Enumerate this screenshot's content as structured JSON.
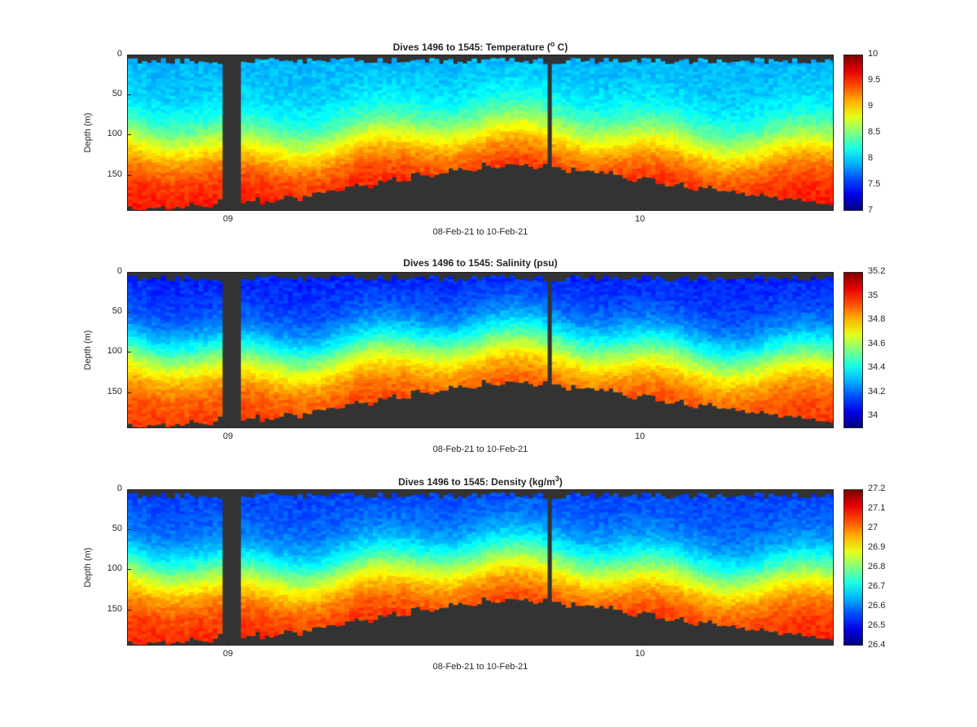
{
  "chart_data": [
    {
      "type": "heatmap",
      "title": "Dives 1496 to 1545: Temperature (",
      "title_sup": "o",
      "title_suffix": " C)",
      "xlabel": "08-Feb-21 to 10-Feb-21",
      "ylabel": "Depth (m)",
      "x_ticks": [
        "09",
        "10"
      ],
      "y_ticks": [
        "0",
        "50",
        "100",
        "150"
      ],
      "ylim": [
        0,
        195
      ],
      "colorbar": {
        "min": 7,
        "max": 10,
        "ticks": [
          "10",
          "9.5",
          "9",
          "8.5",
          "8",
          "7.5",
          "7"
        ]
      },
      "colormap": "jet",
      "profile": {
        "surface": 7.9,
        "deep": 9.6,
        "thermocline_m": 100
      }
    },
    {
      "type": "heatmap",
      "title": "Dives 1496 to 1545: Salinity (psu)",
      "title_sup": "",
      "title_suffix": "",
      "xlabel": "08-Feb-21 to 10-Feb-21",
      "ylabel": "Depth (m)",
      "x_ticks": [
        "09",
        "10"
      ],
      "y_ticks": [
        "0",
        "50",
        "100",
        "150"
      ],
      "ylim": [
        0,
        195
      ],
      "colorbar": {
        "min": 33.9,
        "max": 35.2,
        "ticks": [
          "35.2",
          "35",
          "34.8",
          "34.6",
          "34.4",
          "34.2",
          "34"
        ]
      },
      "colormap": "jet",
      "profile": {
        "surface": 34.1,
        "deep": 34.98,
        "thermocline_m": 95
      }
    },
    {
      "type": "heatmap",
      "title": "Dives 1496 to 1545: Density (kg/m",
      "title_sup": "3",
      "title_suffix": ")",
      "xlabel": "08-Feb-21 to 10-Feb-21",
      "ylabel": "Depth (m)",
      "x_ticks": [
        "09",
        "10"
      ],
      "y_ticks": [
        "0",
        "50",
        "100",
        "150"
      ],
      "ylim": [
        0,
        195
      ],
      "colorbar": {
        "min": 26.4,
        "max": 27.2,
        "ticks": [
          "27.2",
          "27.1",
          "27",
          "26.9",
          "26.8",
          "26.7",
          "26.6",
          "26.5",
          "26.4"
        ]
      },
      "colormap": "jet",
      "profile": {
        "surface": 26.55,
        "deep": 27.08,
        "thermocline_m": 95
      }
    }
  ]
}
